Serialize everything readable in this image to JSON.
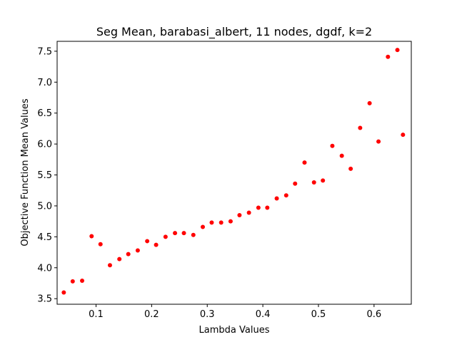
{
  "chart_data": {
    "type": "scatter",
    "title": "Seg Mean, barabasi_albert, 11 nodes, dgdf, k=2",
    "xlabel": "Lambda Values",
    "ylabel": "Objective Function Mean Values",
    "xlim": [
      0.03,
      0.667
    ],
    "ylim": [
      3.41,
      7.66
    ],
    "xticks": [
      0.1,
      0.2,
      0.3,
      0.4,
      0.5,
      0.6
    ],
    "xtick_labels": [
      "0.1",
      "0.2",
      "0.3",
      "0.4",
      "0.5",
      "0.6"
    ],
    "yticks": [
      3.5,
      4.0,
      4.5,
      5.0,
      5.5,
      6.0,
      6.5,
      7.0,
      7.5
    ],
    "ytick_labels": [
      "3.5",
      "4.0",
      "4.5",
      "5.0",
      "5.5",
      "6.0",
      "6.5",
      "7.0",
      "7.5"
    ],
    "grid": false,
    "marker_color": "#ff0000",
    "points": [
      {
        "x": 0.042,
        "y": 3.6
      },
      {
        "x": 0.058,
        "y": 3.78
      },
      {
        "x": 0.075,
        "y": 3.79
      },
      {
        "x": 0.092,
        "y": 4.51
      },
      {
        "x": 0.108,
        "y": 4.38
      },
      {
        "x": 0.125,
        "y": 4.04
      },
      {
        "x": 0.142,
        "y": 4.14
      },
      {
        "x": 0.158,
        "y": 4.22
      },
      {
        "x": 0.175,
        "y": 4.28
      },
      {
        "x": 0.192,
        "y": 4.43
      },
      {
        "x": 0.208,
        "y": 4.37
      },
      {
        "x": 0.225,
        "y": 4.5
      },
      {
        "x": 0.242,
        "y": 4.56
      },
      {
        "x": 0.258,
        "y": 4.56
      },
      {
        "x": 0.275,
        "y": 4.53
      },
      {
        "x": 0.292,
        "y": 4.66
      },
      {
        "x": 0.308,
        "y": 4.73
      },
      {
        "x": 0.325,
        "y": 4.73
      },
      {
        "x": 0.342,
        "y": 4.75
      },
      {
        "x": 0.358,
        "y": 4.85
      },
      {
        "x": 0.375,
        "y": 4.89
      },
      {
        "x": 0.392,
        "y": 4.97
      },
      {
        "x": 0.408,
        "y": 4.97
      },
      {
        "x": 0.425,
        "y": 5.12
      },
      {
        "x": 0.442,
        "y": 5.17
      },
      {
        "x": 0.458,
        "y": 5.36
      },
      {
        "x": 0.475,
        "y": 5.7
      },
      {
        "x": 0.492,
        "y": 5.38
      },
      {
        "x": 0.508,
        "y": 5.41
      },
      {
        "x": 0.525,
        "y": 5.97
      },
      {
        "x": 0.542,
        "y": 5.81
      },
      {
        "x": 0.558,
        "y": 5.6
      },
      {
        "x": 0.575,
        "y": 6.26
      },
      {
        "x": 0.592,
        "y": 6.66
      },
      {
        "x": 0.608,
        "y": 6.04
      },
      {
        "x": 0.625,
        "y": 7.41
      },
      {
        "x": 0.642,
        "y": 7.52
      },
      {
        "x": 0.652,
        "y": 6.15
      }
    ]
  }
}
